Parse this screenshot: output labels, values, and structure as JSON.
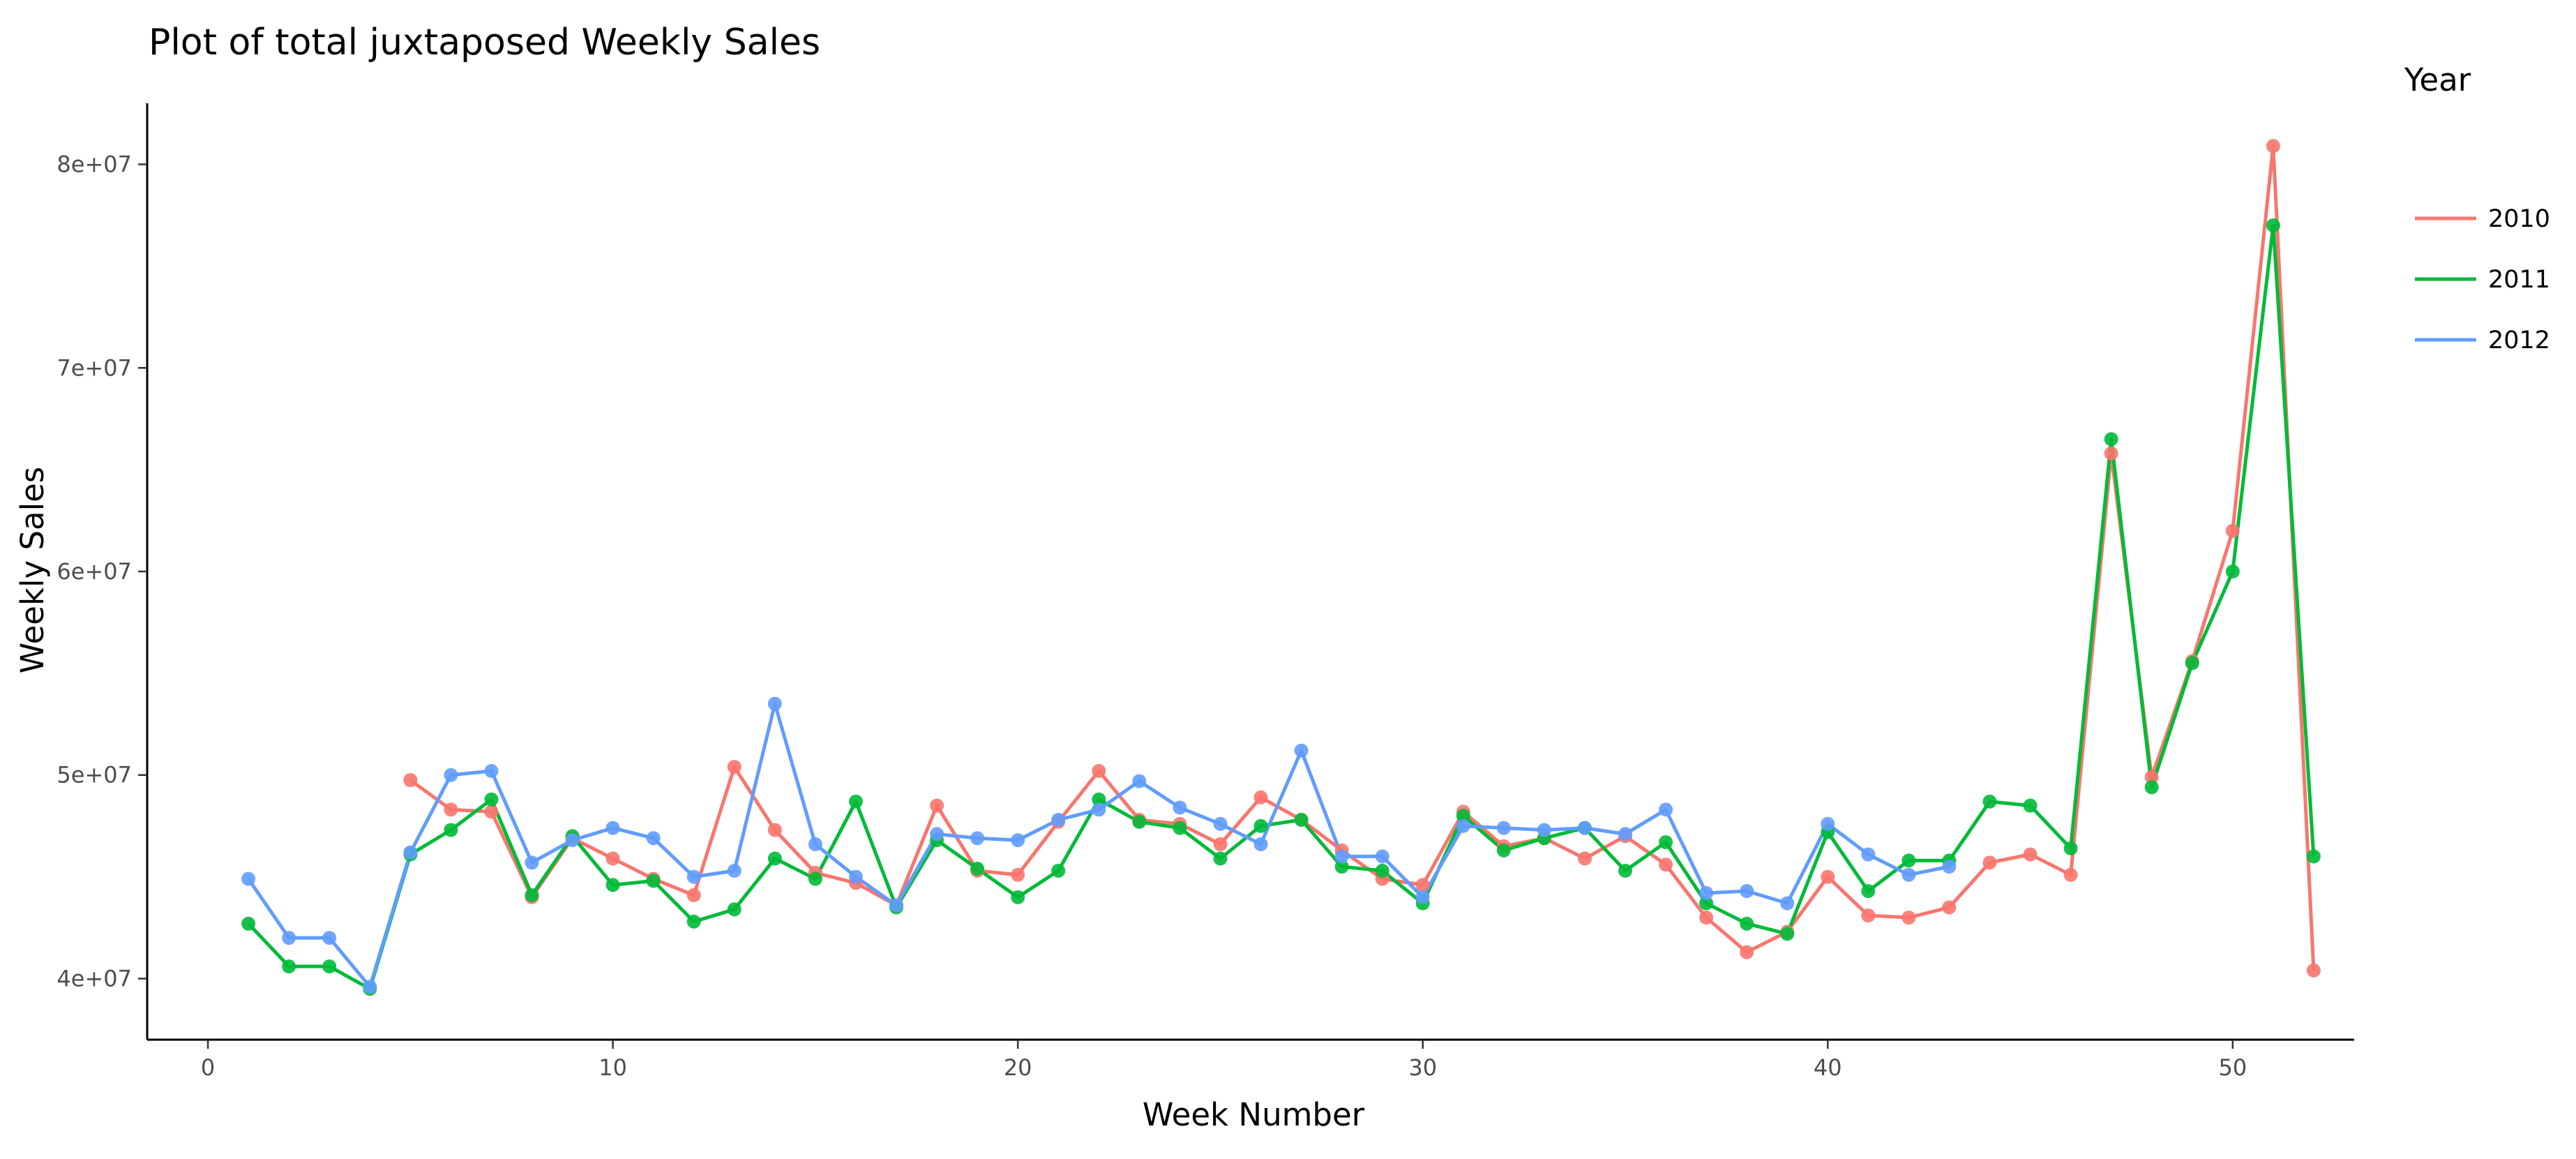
{
  "chart_data": {
    "type": "line",
    "title": "Plot of total juxtaposed Weekly Sales",
    "xlabel": "Week Number",
    "ylabel": "Weekly Sales",
    "xlim": [
      -1.5,
      53
    ],
    "ylim": [
      37000000,
      83000000
    ],
    "x_ticks": [
      0,
      10,
      20,
      30,
      40,
      50
    ],
    "x_tick_labels": [
      "0",
      "10",
      "20",
      "30",
      "40",
      "50"
    ],
    "y_ticks": [
      40000000,
      50000000,
      60000000,
      70000000,
      80000000
    ],
    "y_tick_labels": [
      "4e+07",
      "5e+07",
      "6e+07",
      "7e+07",
      "8e+07"
    ],
    "grid": false,
    "markers": true,
    "legend": {
      "title": "Year",
      "position": "right"
    },
    "series": [
      {
        "name": "2010",
        "color": "#F8766D",
        "x": [
          5,
          6,
          7,
          8,
          9,
          10,
          11,
          12,
          13,
          14,
          15,
          16,
          17,
          18,
          19,
          20,
          21,
          22,
          23,
          24,
          25,
          26,
          27,
          28,
          29,
          30,
          31,
          32,
          33,
          34,
          35,
          36,
          37,
          38,
          39,
          40,
          41,
          42,
          43,
          44,
          45,
          46,
          47,
          48,
          49,
          50,
          51,
          52
        ],
        "values": [
          49750000,
          48300000,
          48200000,
          44000000,
          46900000,
          45900000,
          44900000,
          44100000,
          50400000,
          47300000,
          45200000,
          44700000,
          43600000,
          48500000,
          45300000,
          45100000,
          47700000,
          50200000,
          47800000,
          47600000,
          46600000,
          48900000,
          47800000,
          46300000,
          44900000,
          44600000,
          48200000,
          46500000,
          46900000,
          45900000,
          47000000,
          45600000,
          43000000,
          41300000,
          42300000,
          45000000,
          43100000,
          43000000,
          43500000,
          45700000,
          46100000,
          45100000,
          65800000,
          49900000,
          55600000,
          62000000,
          80900000,
          40400000
        ]
      },
      {
        "name": "2011",
        "color": "#00BA38",
        "x": [
          1,
          2,
          3,
          4,
          5,
          6,
          7,
          8,
          9,
          10,
          11,
          12,
          13,
          14,
          15,
          16,
          17,
          18,
          19,
          20,
          21,
          22,
          23,
          24,
          25,
          26,
          27,
          28,
          29,
          30,
          31,
          32,
          33,
          34,
          35,
          36,
          37,
          38,
          39,
          40,
          41,
          42,
          43,
          44,
          45,
          46,
          47,
          48,
          49,
          50,
          51,
          52
        ],
        "values": [
          42700000,
          40600000,
          40600000,
          39500000,
          46100000,
          47300000,
          48800000,
          44100000,
          47000000,
          44600000,
          44800000,
          42800000,
          43400000,
          45900000,
          44900000,
          48700000,
          43500000,
          46800000,
          45400000,
          44000000,
          45300000,
          48800000,
          47700000,
          47400000,
          45900000,
          47500000,
          47800000,
          45500000,
          45300000,
          43700000,
          48000000,
          46300000,
          46900000,
          47400000,
          45300000,
          46700000,
          43700000,
          42700000,
          42200000,
          47200000,
          44300000,
          45800000,
          45800000,
          48700000,
          48500000,
          46400000,
          66500000,
          49400000,
          55500000,
          60000000,
          77000000,
          46000000
        ]
      },
      {
        "name": "2012",
        "color": "#619CFF",
        "x": [
          1,
          2,
          3,
          4,
          5,
          6,
          7,
          8,
          9,
          10,
          11,
          12,
          13,
          14,
          15,
          16,
          17,
          18,
          19,
          20,
          21,
          22,
          23,
          24,
          25,
          26,
          27,
          28,
          29,
          30,
          31,
          32,
          33,
          34,
          35,
          36,
          37,
          38,
          39,
          40,
          41,
          42,
          43
        ],
        "values": [
          44900000,
          42000000,
          42000000,
          39600000,
          46200000,
          50000000,
          50200000,
          45700000,
          46800000,
          47400000,
          46900000,
          45000000,
          45300000,
          53500000,
          46600000,
          45000000,
          43600000,
          47100000,
          46900000,
          46800000,
          47800000,
          48300000,
          49700000,
          48400000,
          47600000,
          46600000,
          51200000,
          46000000,
          46000000,
          44000000,
          47500000,
          47400000,
          47300000,
          47400000,
          47100000,
          48300000,
          44200000,
          44300000,
          43700000,
          47600000,
          46100000,
          45100000,
          45500000
        ]
      }
    ]
  }
}
